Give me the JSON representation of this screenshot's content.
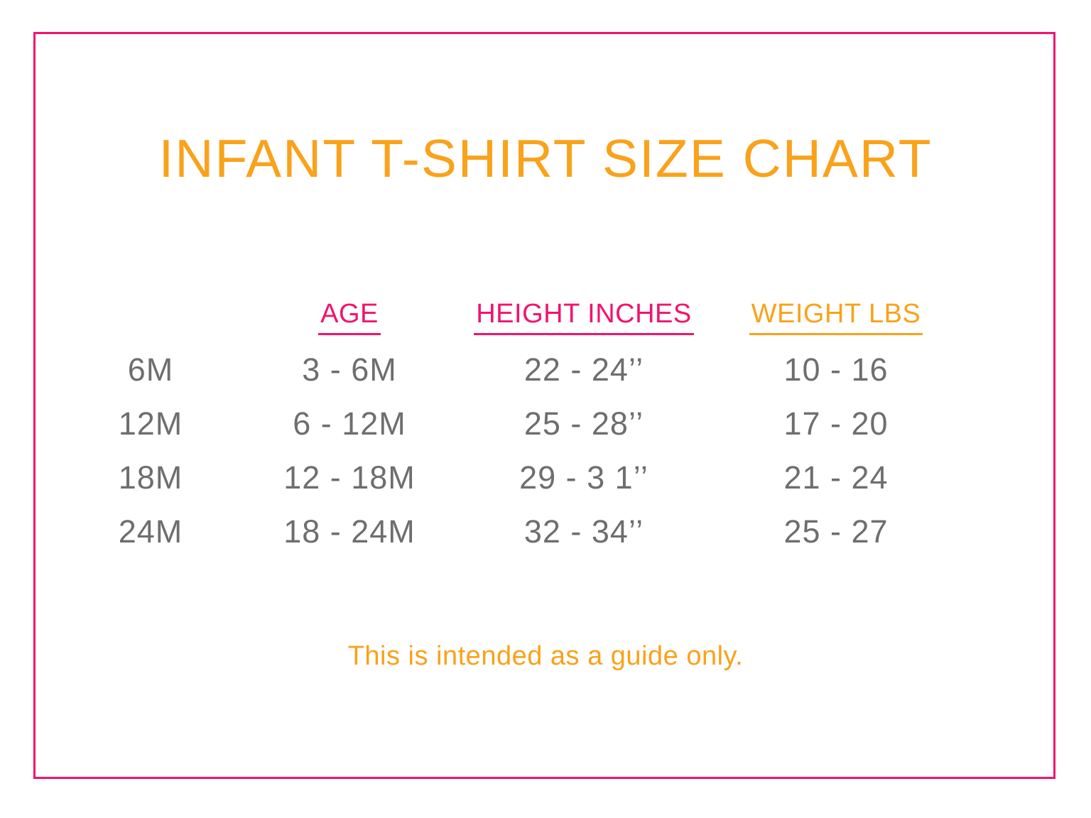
{
  "title": "INFANT T-SHIRT SIZE CHART",
  "footer_note": "This is intended as a guide only.",
  "colors": {
    "border_pink": "#F2136D",
    "header_pink": "#F2136D",
    "accent_orange": "#F9A21B",
    "data_gray": "#6E6E6E",
    "background": "#FFFFFF"
  },
  "table": {
    "headers": [
      {
        "label": "AGE"
      },
      {
        "label": "HEIGHT INCHES"
      },
      {
        "label": "WEIGHT LBS"
      }
    ],
    "rows": [
      {
        "size": "6M",
        "age": "3 - 6M",
        "height": "22 - 24’’",
        "weight": "10 - 16"
      },
      {
        "size": "12M",
        "age": "6 - 12M",
        "height": "25 - 28’’",
        "weight": "17 - 20"
      },
      {
        "size": "18M",
        "age": "12 - 18M",
        "height": "29 - 3 1’’",
        "weight": "21 - 24"
      },
      {
        "size": "24M",
        "age": "18 - 24M",
        "height": "32 - 34’’",
        "weight": "25 - 27"
      }
    ]
  }
}
